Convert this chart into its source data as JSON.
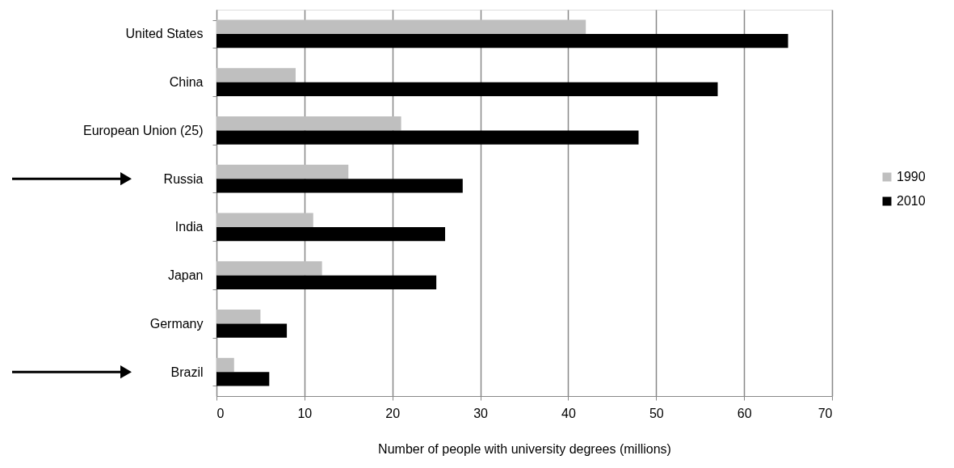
{
  "chart_data": {
    "type": "bar",
    "orientation": "horizontal",
    "xlabel": "Number of people with university degrees (millions)",
    "categories": [
      "United States",
      "China",
      "European Union (25)",
      "Russia",
      "India",
      "Japan",
      "Germany",
      "Brazil"
    ],
    "series": [
      {
        "name": "1990",
        "color": "#bfbfbf",
        "values": [
          42,
          9,
          21,
          15,
          11,
          12,
          5,
          2
        ]
      },
      {
        "name": "2010",
        "color": "#000000",
        "values": [
          65,
          57,
          48,
          28,
          26,
          25,
          8,
          6
        ]
      }
    ],
    "xlim": [
      0,
      70
    ],
    "xticks": [
      0,
      10,
      20,
      30,
      40,
      50,
      60,
      70
    ],
    "grid": "x",
    "legend": "right"
  }
}
